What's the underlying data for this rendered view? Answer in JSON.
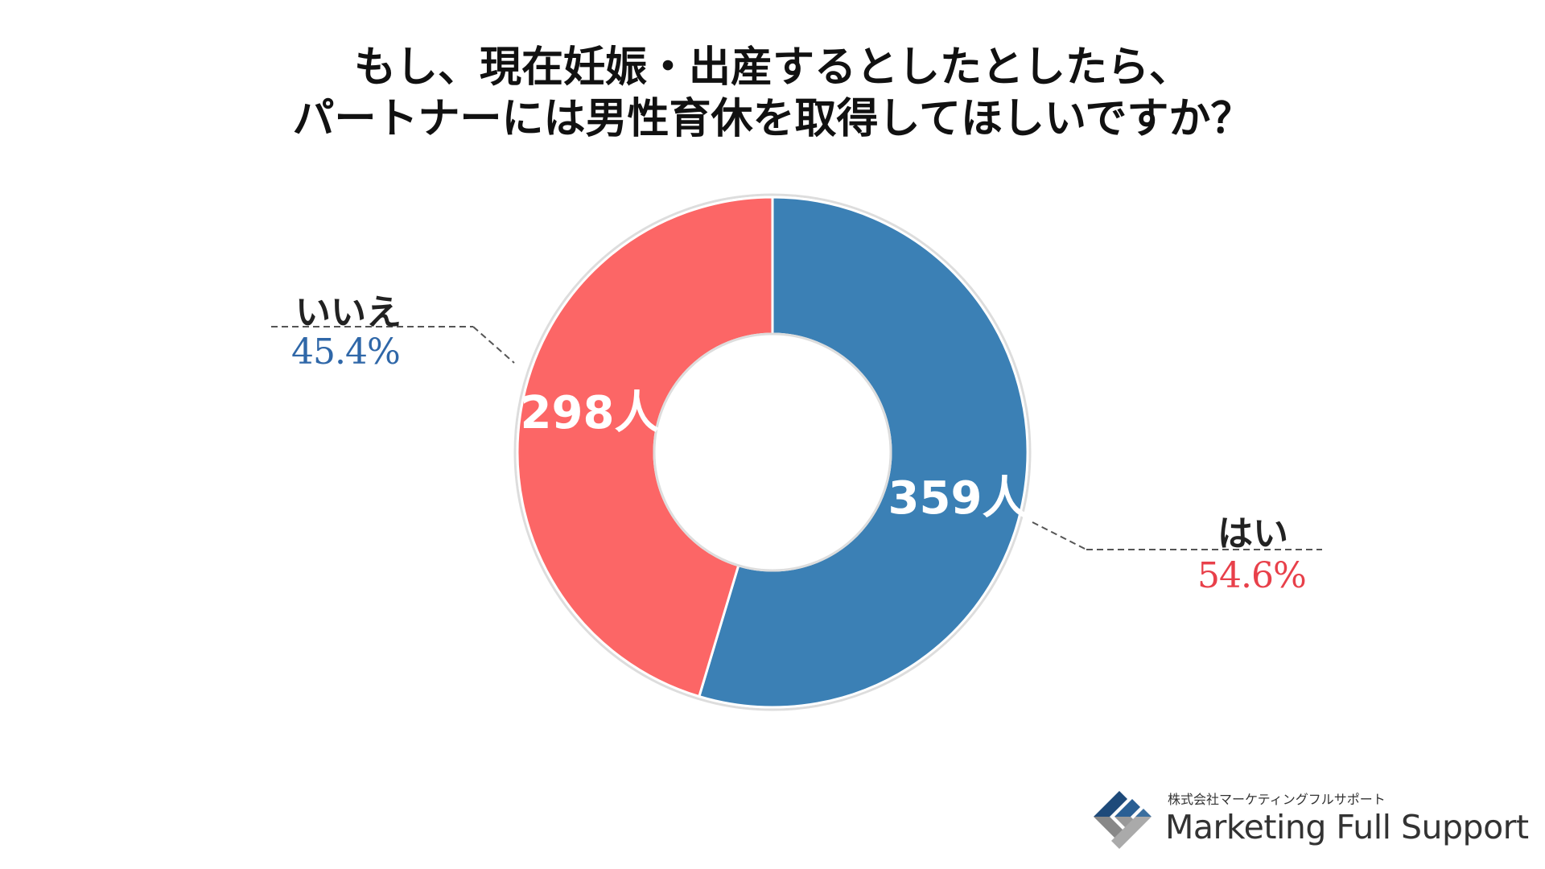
{
  "chart_data": {
    "type": "pie",
    "variant": "donut",
    "title": [
      "もし、現在妊娠・出産するとしたとしたら、",
      "パートナーには男性育休を取得してほしいですか？"
    ],
    "categories": [
      "はい",
      "いいえ"
    ],
    "values": [
      359,
      298
    ],
    "value_labels": [
      "359人",
      "298人"
    ],
    "percentages": [
      "54.6%",
      "45.4%"
    ],
    "colors": [
      "#3b80b5",
      "#fc6666"
    ],
    "percent_label_colors": [
      "#e8404a",
      "#2f67a8"
    ],
    "start": "top",
    "direction": "clockwise"
  },
  "logo": {
    "company_jp": "株式会社マーケティングフルサポート",
    "company_en": "Marketing Full Support"
  }
}
